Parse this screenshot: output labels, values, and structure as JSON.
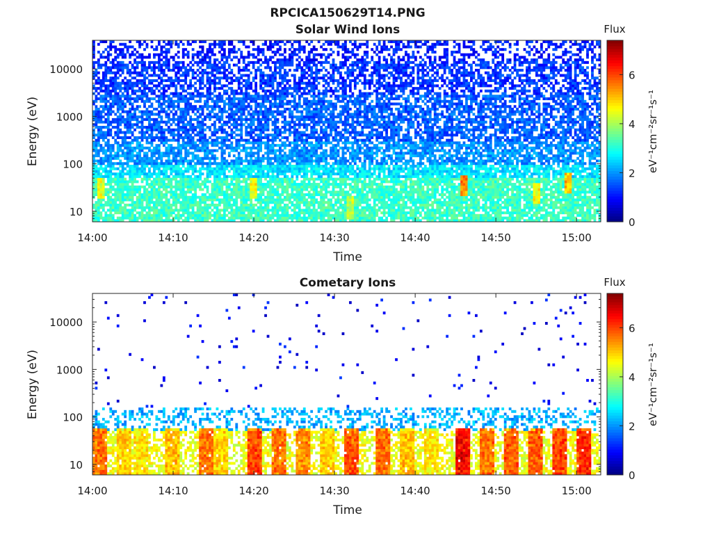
{
  "figure": {
    "title": "RPCICA150629T14.PNG"
  },
  "chart_data": [
    {
      "type": "heatmap",
      "title": "Solar Wind Ions",
      "xlabel": "Time",
      "ylabel": "Energy (eV)",
      "y_scale": "log",
      "xlim": [
        "14:00",
        "15:03"
      ],
      "ylim": [
        6,
        40000
      ],
      "x_ticks": [
        "14:00",
        "14:10",
        "14:20",
        "14:30",
        "14:40",
        "14:50",
        "15:00"
      ],
      "y_ticks": [
        "10",
        "100",
        "1000",
        "10000"
      ],
      "y_tick_values": [
        10,
        100,
        1000,
        10000
      ],
      "colorbar": {
        "title": "Flux",
        "label": "eV⁻¹cm⁻²sr⁻¹s⁻¹",
        "range": [
          0,
          7.4
        ],
        "ticks": [
          0,
          2,
          4,
          6
        ],
        "colormap": "jet"
      },
      "profile": [
        {
          "energy_max": 30000,
          "typical_flux": 1.1,
          "coverage": 0.45
        },
        {
          "energy_max": 15000,
          "typical_flux": 1.3,
          "coverage": 0.65
        },
        {
          "energy_max": 3000,
          "typical_flux": 1.6,
          "coverage": 0.7
        },
        {
          "energy_max": 300,
          "typical_flux": 2.0,
          "coverage": 0.75
        },
        {
          "energy_max": 100,
          "typical_flux": 2.6,
          "coverage": 0.8
        },
        {
          "energy_max": 50,
          "typical_flux": 3.2,
          "coverage": 0.85
        },
        {
          "energy_max": 6,
          "typical_flux": 3.0,
          "coverage": 0.85
        }
      ],
      "notable_peaks": [
        {
          "time": "14:01",
          "energy": 30,
          "flux": 4.6
        },
        {
          "time": "14:20",
          "energy": 30,
          "flux": 4.8
        },
        {
          "time": "14:32",
          "energy": 12,
          "flux": 4.3
        },
        {
          "time": "14:46",
          "energy": 35,
          "flux": 5.8
        },
        {
          "time": "14:55",
          "energy": 25,
          "flux": 4.8
        },
        {
          "time": "14:59",
          "energy": 40,
          "flux": 5.2
        }
      ]
    },
    {
      "type": "heatmap",
      "title": "Cometary Ions",
      "xlabel": "Time",
      "ylabel": "Energy (eV)",
      "y_scale": "log",
      "xlim": [
        "14:00",
        "15:03"
      ],
      "ylim": [
        6,
        40000
      ],
      "x_ticks": [
        "14:00",
        "14:10",
        "14:20",
        "14:30",
        "14:40",
        "14:50",
        "15:00"
      ],
      "y_ticks": [
        "10",
        "100",
        "1000",
        "10000"
      ],
      "y_tick_values": [
        10,
        100,
        1000,
        10000
      ],
      "colorbar": {
        "title": "Flux",
        "label": "eV⁻¹cm⁻²sr⁻¹s⁻¹",
        "range": [
          0,
          7.4
        ],
        "ticks": [
          0,
          2,
          4,
          6
        ],
        "colormap": "jet"
      },
      "profile": [
        {
          "energy_max": 30000,
          "typical_flux": 0.9,
          "coverage": 0.02
        },
        {
          "energy_max": 150,
          "typical_flux": 2.2,
          "coverage": 0.35
        },
        {
          "energy_max": 50,
          "typical_flux": 4.5,
          "coverage": 0.55
        },
        {
          "energy_max": 6,
          "typical_flux": 3.6,
          "coverage": 0.6
        }
      ],
      "bursts": [
        {
          "time": "14:01",
          "flux": 5.8
        },
        {
          "time": "14:04",
          "flux": 5.0
        },
        {
          "time": "14:06",
          "flux": 4.8
        },
        {
          "time": "14:10",
          "flux": 5.2
        },
        {
          "time": "14:14",
          "flux": 5.8
        },
        {
          "time": "14:16",
          "flux": 5.0
        },
        {
          "time": "14:20",
          "flux": 6.2
        },
        {
          "time": "14:23",
          "flux": 5.8
        },
        {
          "time": "14:26",
          "flux": 5.6
        },
        {
          "time": "14:29",
          "flux": 5.0
        },
        {
          "time": "14:32",
          "flux": 6.0
        },
        {
          "time": "14:36",
          "flux": 5.8
        },
        {
          "time": "14:39",
          "flux": 5.2
        },
        {
          "time": "14:42",
          "flux": 4.8
        },
        {
          "time": "14:46",
          "flux": 6.8
        },
        {
          "time": "14:49",
          "flux": 5.8
        },
        {
          "time": "14:52",
          "flux": 6.0
        },
        {
          "time": "14:55",
          "flux": 6.0
        },
        {
          "time": "14:58",
          "flux": 6.2
        },
        {
          "time": "15:01",
          "flux": 6.4
        }
      ]
    }
  ]
}
